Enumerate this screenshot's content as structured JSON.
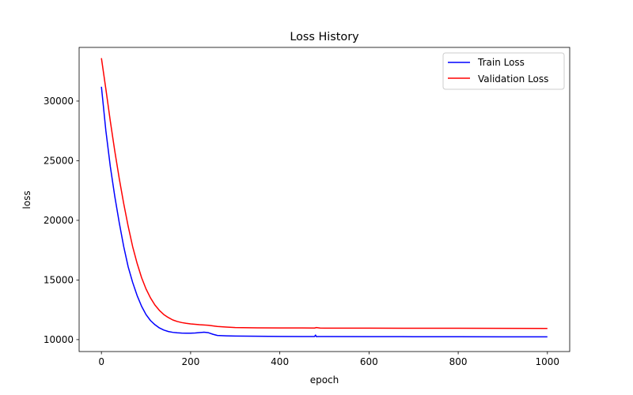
{
  "chart_data": {
    "type": "line",
    "title": "Loss History",
    "xlabel": "epoch",
    "ylabel": "loss",
    "xlim": [
      -50,
      1050
    ],
    "ylim": [
      9000,
      34500
    ],
    "xticks": [
      0,
      200,
      400,
      600,
      800,
      1000
    ],
    "yticks": [
      10000,
      15000,
      20000,
      25000,
      30000
    ],
    "grid": false,
    "legend": "top-right",
    "series": [
      {
        "name": "Train Loss",
        "color": "#0000ff",
        "x": [
          0,
          10,
          20,
          30,
          40,
          50,
          60,
          70,
          80,
          90,
          100,
          110,
          120,
          130,
          140,
          150,
          160,
          170,
          180,
          190,
          200,
          210,
          220,
          230,
          240,
          250,
          260,
          280,
          300,
          350,
          400,
          450,
          478,
          480,
          482,
          485,
          500,
          600,
          700,
          800,
          900,
          1000
        ],
        "y": [
          31200,
          27500,
          24500,
          22000,
          19800,
          17800,
          16100,
          14800,
          13700,
          12800,
          12100,
          11600,
          11250,
          10980,
          10800,
          10680,
          10610,
          10570,
          10550,
          10540,
          10540,
          10560,
          10590,
          10620,
          10580,
          10450,
          10350,
          10320,
          10300,
          10280,
          10270,
          10260,
          10260,
          10380,
          10250,
          10260,
          10260,
          10250,
          10245,
          10240,
          10235,
          10230
        ]
      },
      {
        "name": "Validation Loss",
        "color": "#ff0000",
        "x": [
          0,
          10,
          20,
          30,
          40,
          50,
          60,
          70,
          80,
          90,
          100,
          110,
          120,
          130,
          140,
          150,
          160,
          170,
          180,
          190,
          200,
          220,
          240,
          260,
          280,
          300,
          350,
          400,
          450,
          478,
          482,
          490,
          500,
          600,
          700,
          800,
          900,
          1000
        ],
        "y": [
          33600,
          31000,
          28300,
          25800,
          23500,
          21400,
          19500,
          17800,
          16400,
          15200,
          14250,
          13500,
          12900,
          12450,
          12100,
          11850,
          11650,
          11520,
          11430,
          11370,
          11320,
          11250,
          11200,
          11100,
          11050,
          11010,
          10990,
          10980,
          10975,
          10970,
          11010,
          10970,
          10965,
          10960,
          10955,
          10950,
          10945,
          10940
        ]
      }
    ]
  }
}
